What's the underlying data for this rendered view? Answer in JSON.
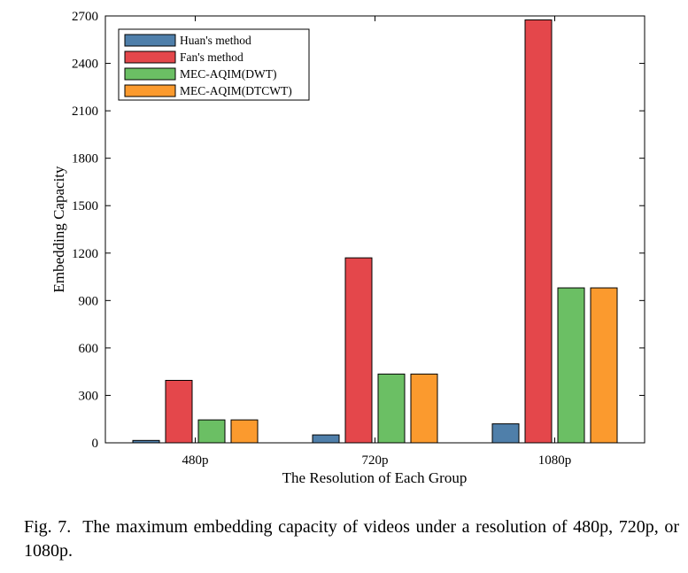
{
  "chart_data": {
    "type": "bar",
    "categories": [
      "480p",
      "720p",
      "1080p"
    ],
    "series": [
      {
        "name": "Huan's method",
        "values": [
          15,
          50,
          120
        ],
        "color": "#4f7faa"
      },
      {
        "name": "Fan's method",
        "values": [
          395,
          1170,
          2675
        ],
        "color": "#e4474b"
      },
      {
        "name": "MEC-AQIM(DWT)",
        "values": [
          145,
          435,
          980
        ],
        "color": "#6bbf64"
      },
      {
        "name": "MEC-AQIM(DTCWT)",
        "values": [
          145,
          435,
          980
        ],
        "color": "#fb9a2e"
      }
    ],
    "title": "",
    "xlabel": "The Resolution of Each Group",
    "ylabel": "Embedding Capacity",
    "ylim": [
      0,
      2700
    ],
    "yticks": [
      0,
      300,
      600,
      900,
      1200,
      1500,
      1800,
      2100,
      2400,
      2700
    ],
    "legend_position": "top-left",
    "grid": false
  },
  "caption": {
    "label": "Fig. 7.",
    "text": "The maximum embedding capacity of videos under a resolution of 480p, 720p, or 1080p."
  }
}
